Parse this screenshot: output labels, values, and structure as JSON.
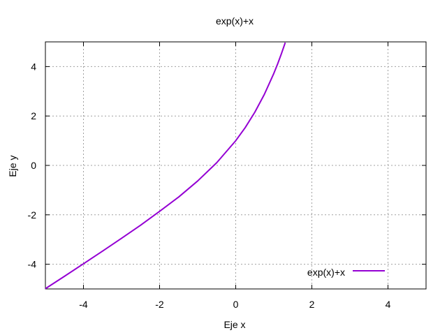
{
  "chart_data": {
    "type": "line",
    "title": "exp(x)+x",
    "xlabel": "Eje x",
    "ylabel": "Eje y",
    "xlim": [
      -5,
      5
    ],
    "ylim": [
      -5,
      5
    ],
    "xticks": [
      -4,
      -2,
      0,
      2,
      4
    ],
    "yticks": [
      -4,
      -2,
      0,
      2,
      4
    ],
    "grid": true,
    "legend_position": "bottom-right",
    "series": [
      {
        "name": "exp(x)+x",
        "color": "#9400d3",
        "x": [
          -5,
          -4.5,
          -4,
          -3.5,
          -3,
          -2.5,
          -2,
          -1.5,
          -1,
          -0.5,
          0,
          0.25,
          0.5,
          0.75,
          1,
          1.1,
          1.2,
          1.3
        ],
        "y": [
          -4.99,
          -4.49,
          -3.98,
          -3.47,
          -2.95,
          -2.42,
          -1.86,
          -1.28,
          -0.63,
          0.11,
          1,
          1.53,
          2.15,
          2.87,
          3.72,
          4.1,
          4.52,
          4.97
        ]
      }
    ]
  }
}
